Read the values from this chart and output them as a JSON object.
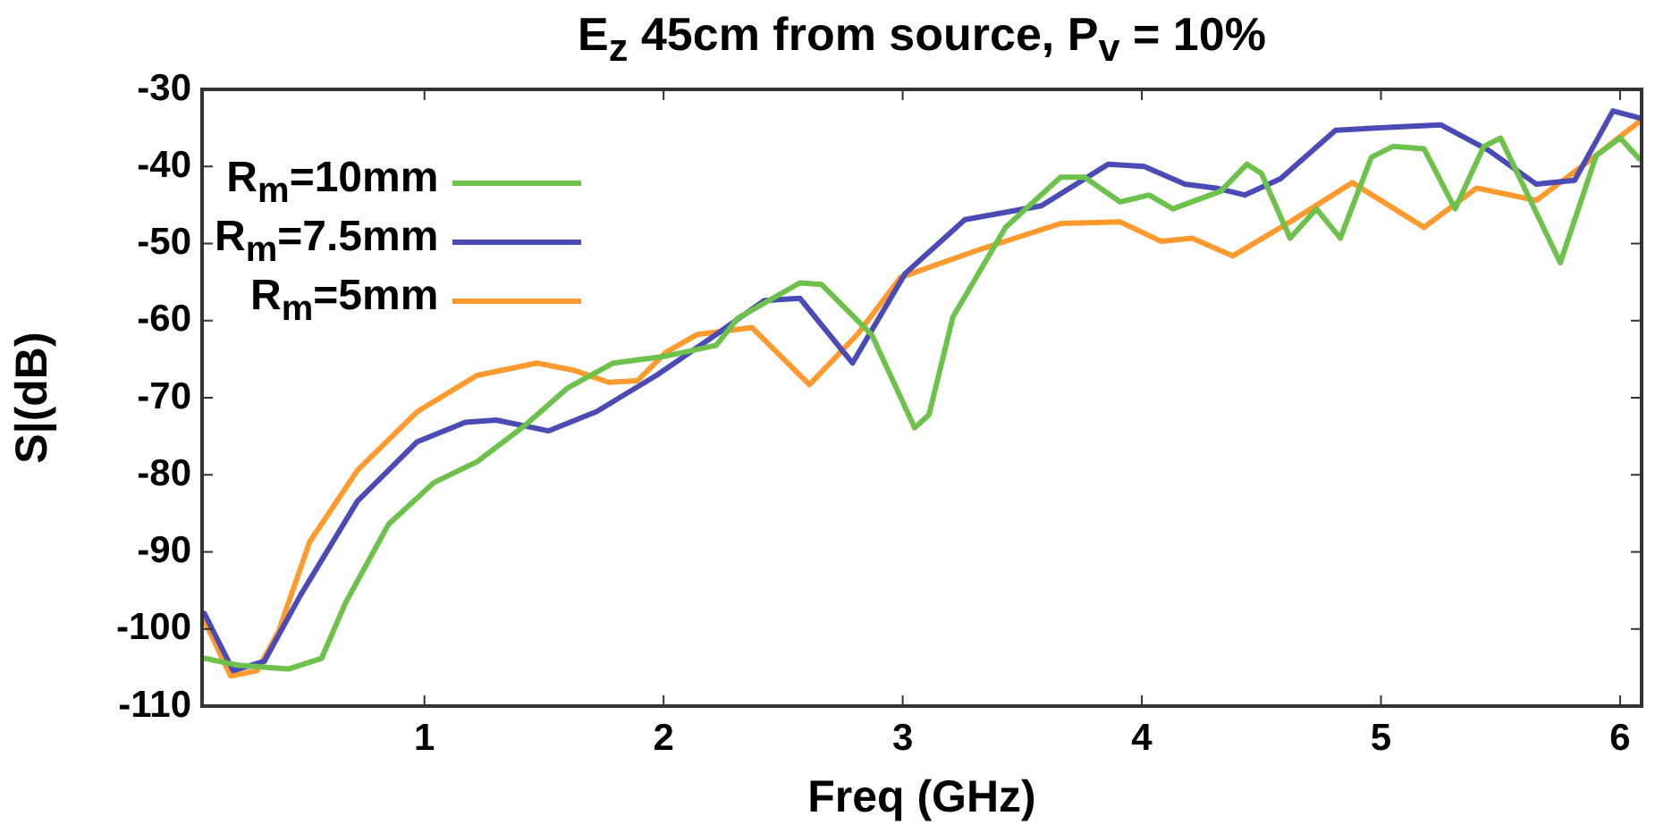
{
  "chart_data": {
    "type": "line",
    "title": "E$_{z}$ 45cm from source, P$_{v}$ = 10%",
    "xlabel": "Freq (GHz)",
    "ylabel": "S|(dB)",
    "xlim": [
      0.07,
      6.09
    ],
    "xticks": [
      1,
      2,
      3,
      4,
      5,
      6
    ],
    "ylim": [
      -110,
      -30
    ],
    "yticks": [
      -110,
      -100,
      -90,
      -80,
      -70,
      -60,
      -50,
      -40,
      -30
    ],
    "grid": false,
    "legend": "top left",
    "marker": "none",
    "line_style": "solid",
    "series": [
      {
        "name": "R$_{m}$=10mm",
        "color": "#6cc24a",
        "x": [
          0.08,
          0.22,
          0.43,
          0.57,
          0.67,
          0.85,
          1.04,
          1.22,
          1.42,
          1.6,
          1.79,
          2.01,
          2.22,
          2.31,
          2.57,
          2.66,
          2.87,
          3.05,
          3.11,
          3.21,
          3.43,
          3.66,
          3.76,
          3.91,
          4.03,
          4.13,
          4.33,
          4.44,
          4.5,
          4.62,
          4.73,
          4.83,
          4.96,
          5.05,
          5.18,
          5.31,
          5.43,
          5.5,
          5.75,
          5.9,
          6.0,
          6.08
        ],
        "values": [
          -103.8,
          -104.7,
          -105.2,
          -103.8,
          -96.6,
          -86.4,
          -81.0,
          -78.3,
          -73.6,
          -68.7,
          -65.5,
          -64.6,
          -63.2,
          -59.7,
          -55.1,
          -55.3,
          -61.8,
          -73.9,
          -72.2,
          -59.5,
          -47.9,
          -41.4,
          -41.4,
          -44.6,
          -43.7,
          -45.5,
          -43.2,
          -39.7,
          -40.9,
          -49.3,
          -45.5,
          -49.3,
          -38.8,
          -37.4,
          -37.7,
          -45.5,
          -37.4,
          -36.3,
          -52.5,
          -38.6,
          -36.3,
          -39.0
        ]
      },
      {
        "name": "R$_{m}$=7.5mm",
        "color": "#4b4bb5",
        "x": [
          0.08,
          0.2,
          0.33,
          0.48,
          0.72,
          0.97,
          1.17,
          1.3,
          1.52,
          1.72,
          1.97,
          2.22,
          2.42,
          2.57,
          2.79,
          3.01,
          3.26,
          3.58,
          3.86,
          4.01,
          4.18,
          4.31,
          4.43,
          4.58,
          4.81,
          5.05,
          5.25,
          5.45,
          5.65,
          5.81,
          5.97,
          6.08
        ],
        "values": [
          -98.0,
          -105.4,
          -104.2,
          -95.7,
          -83.4,
          -75.7,
          -73.2,
          -72.9,
          -74.3,
          -71.8,
          -67.1,
          -61.8,
          -57.4,
          -57.1,
          -65.5,
          -53.9,
          -46.9,
          -45.1,
          -39.7,
          -40.0,
          -42.3,
          -42.8,
          -43.7,
          -41.6,
          -35.3,
          -34.9,
          -34.6,
          -37.9,
          -42.3,
          -41.8,
          -32.8,
          -33.7
        ]
      },
      {
        "name": "R$_{m}$=5mm",
        "color": "#ff9a2e",
        "x": [
          0.08,
          0.19,
          0.3,
          0.39,
          0.52,
          0.72,
          0.97,
          1.22,
          1.47,
          1.62,
          1.77,
          1.89,
          2.01,
          2.14,
          2.37,
          2.61,
          2.81,
          2.99,
          3.31,
          3.66,
          3.91,
          4.08,
          4.21,
          4.38,
          4.63,
          4.88,
          5.18,
          5.4,
          5.65,
          5.87,
          6.08
        ],
        "values": [
          -98.9,
          -106.1,
          -105.4,
          -100.3,
          -88.7,
          -79.4,
          -71.8,
          -67.1,
          -65.5,
          -66.4,
          -68.0,
          -67.8,
          -64.1,
          -61.8,
          -60.9,
          -68.3,
          -61.8,
          -54.4,
          -50.9,
          -47.4,
          -47.2,
          -49.7,
          -49.3,
          -51.6,
          -47.0,
          -42.1,
          -47.9,
          -42.8,
          -44.4,
          -39.3,
          -34.2
        ]
      }
    ]
  }
}
